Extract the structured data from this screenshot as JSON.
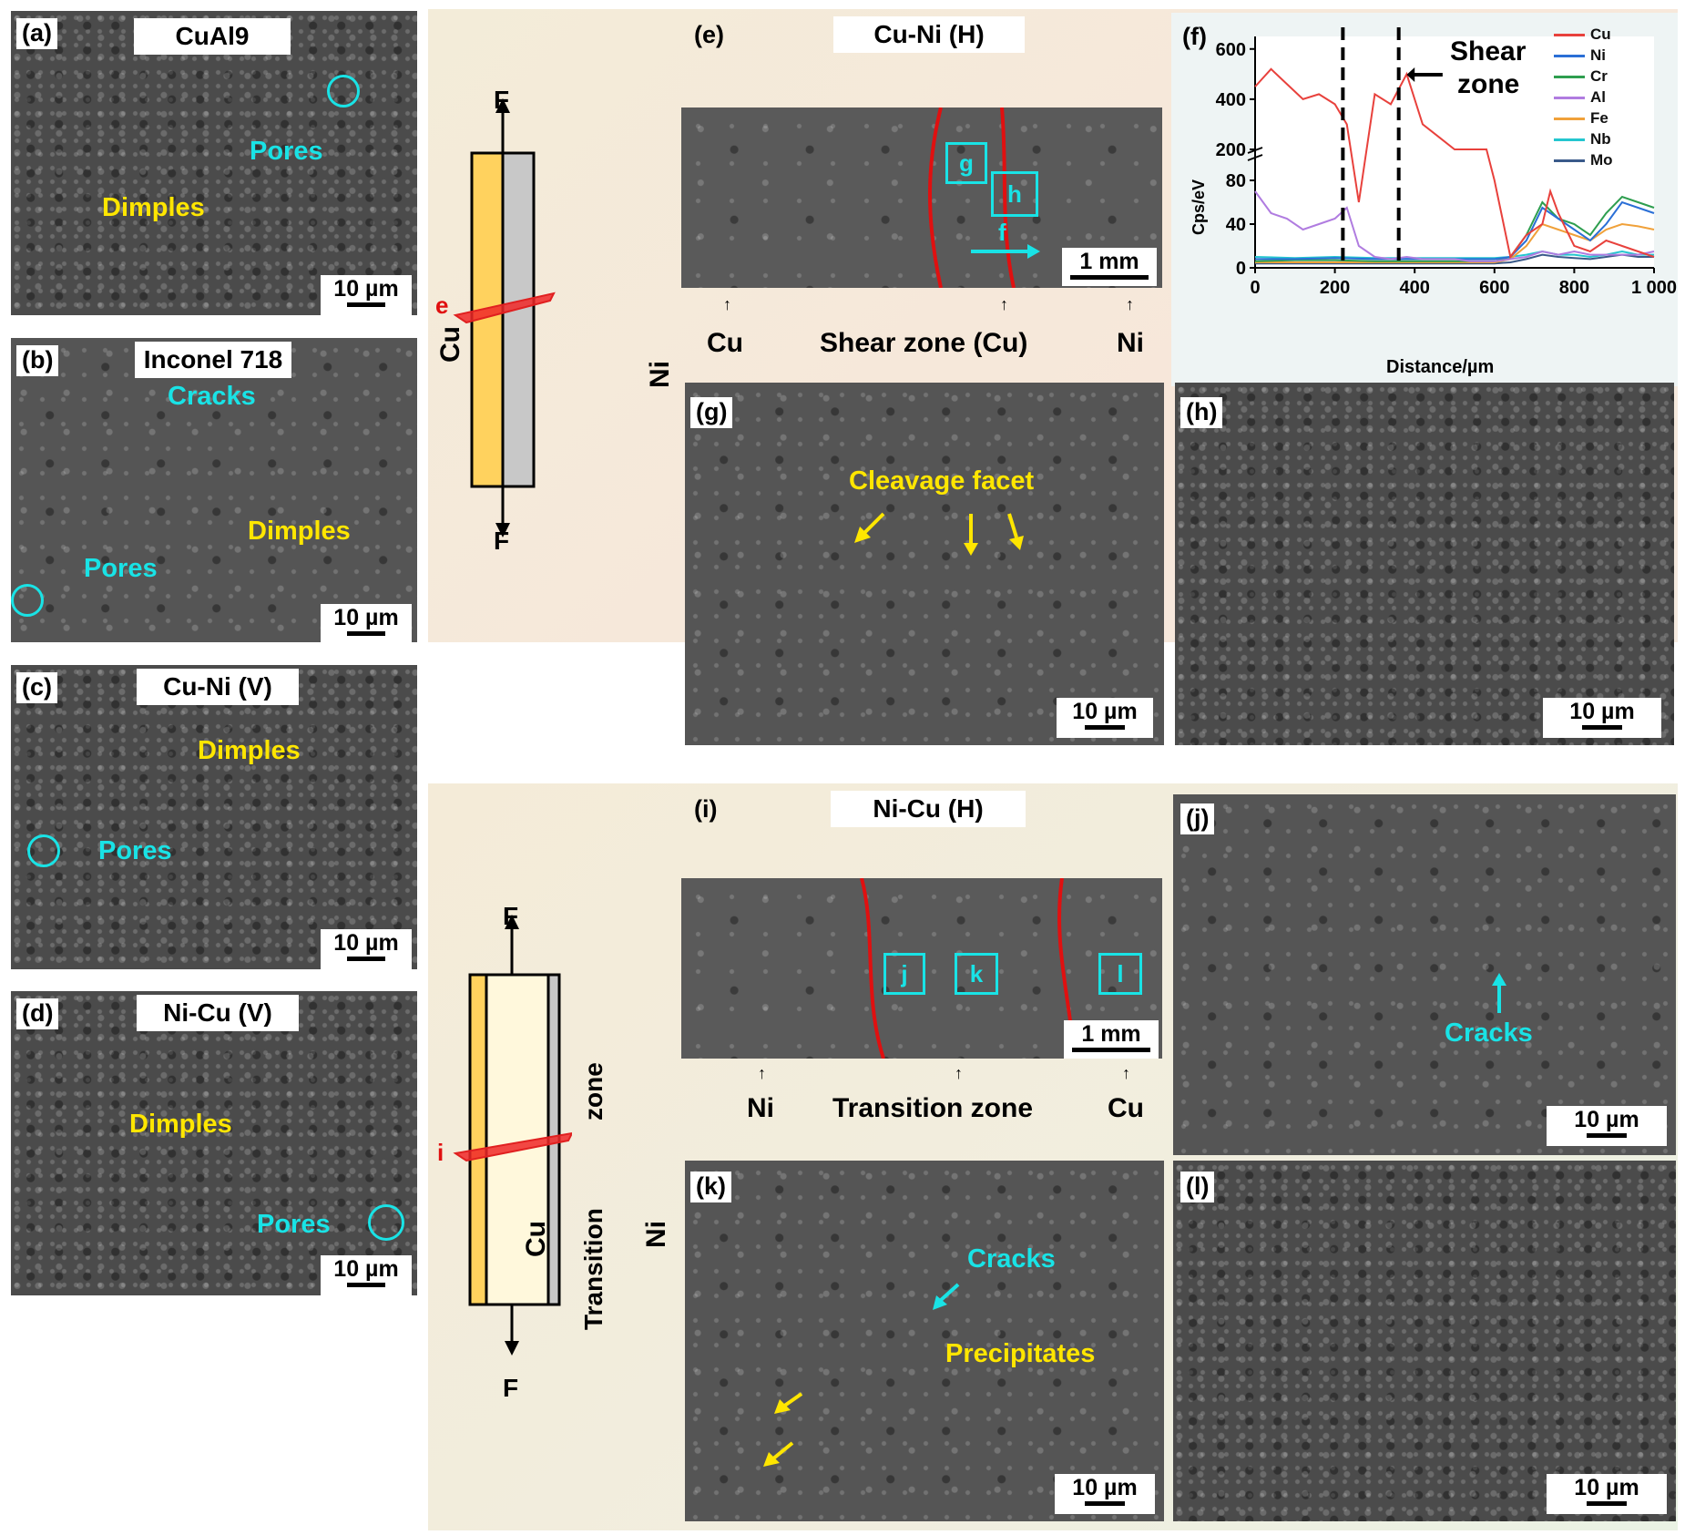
{
  "figure": {
    "panel_a": {
      "letter": "(a)",
      "title": "CuAl9",
      "labels": {
        "pores": "Pores",
        "dimples": "Dimples"
      },
      "scale": "10 µm"
    },
    "panel_b": {
      "letter": "(b)",
      "title": "Inconel 718",
      "labels": {
        "cracks": "Cracks",
        "dimples": "Dimples",
        "pores": "Pores"
      },
      "scale": "10 µm"
    },
    "panel_c": {
      "letter": "(c)",
      "title": "Cu-Ni (V)",
      "labels": {
        "dimples": "Dimples",
        "pores": "Pores"
      },
      "scale": "10 µm"
    },
    "panel_d": {
      "letter": "(d)",
      "title": "Ni-Cu (V)",
      "labels": {
        "dimples": "Dimples",
        "pores": "Pores"
      },
      "scale": "10 µm"
    },
    "schematic_top": {
      "force": "F",
      "section": "e",
      "left": "Cu",
      "right": "Ni"
    },
    "schematic_bottom": {
      "force": "F",
      "section": "i",
      "left": "Cu",
      "right": "Ni",
      "middle_a": "Transition",
      "middle_b": "zone"
    },
    "panel_e": {
      "letter": "(e)",
      "title": "Cu-Ni (H)",
      "boxes": [
        "g",
        "h"
      ],
      "arrow_label": "f",
      "scale": "1 mm",
      "below": [
        "Cu",
        "Shear zone (Cu)",
        "Ni"
      ]
    },
    "panel_g": {
      "letter": "(g)",
      "labels": {
        "cleavage": "Cleavage facet"
      },
      "scale": "10 µm"
    },
    "panel_h": {
      "letter": "(h)",
      "scale": "10 µm"
    },
    "panel_i": {
      "letter": "(i)",
      "title": "Ni-Cu (H)",
      "boxes": [
        "j",
        "k",
        "l"
      ],
      "scale": "1 mm",
      "below": [
        "Ni",
        "Transition zone",
        "Cu"
      ]
    },
    "panel_j": {
      "letter": "(j)",
      "labels": {
        "cracks": "Cracks"
      },
      "scale": "10 µm"
    },
    "panel_k": {
      "letter": "(k)",
      "labels": {
        "cracks": "Cracks",
        "precipitates": "Precipitates"
      },
      "scale": "10 µm"
    },
    "panel_l": {
      "letter": "(l)",
      "scale": "10 µm"
    }
  },
  "chart_data": {
    "type": "line",
    "letter": "(f)",
    "annotation": "Shear zone",
    "annotation_lines": [
      "Shear",
      "zone"
    ],
    "xlabel": "Distance/µm",
    "ylabel": "Cps/eV",
    "xlim": [
      0,
      1000
    ],
    "x_ticks": [
      "0",
      "200",
      "400",
      "600",
      "800",
      "1 000"
    ],
    "y_ticks_lower": [
      "0",
      "40",
      "80"
    ],
    "y_ticks_upper": [
      "200",
      "400",
      "600"
    ],
    "broken_axis": {
      "lower": [
        0,
        95
      ],
      "upper": [
        200,
        650
      ]
    },
    "shear_zone_lines_x": [
      220,
      360
    ],
    "legend": [
      {
        "name": "Cu",
        "color": "#e8413c"
      },
      {
        "name": "Ni",
        "color": "#2a6fd6"
      },
      {
        "name": "Cr",
        "color": "#2e9e4f"
      },
      {
        "name": "Al",
        "color": "#b07ce0"
      },
      {
        "name": "Fe",
        "color": "#f0a13a"
      },
      {
        "name": "Nb",
        "color": "#24c6cf"
      },
      {
        "name": "Mo",
        "color": "#3a5a8a"
      }
    ],
    "series": [
      {
        "name": "Cu",
        "x": [
          0,
          40,
          80,
          120,
          160,
          200,
          230,
          260,
          300,
          340,
          380,
          420,
          460,
          500,
          540,
          580,
          600,
          640,
          680,
          720,
          740,
          760,
          800,
          840,
          880,
          920,
          960,
          1000
        ],
        "y": [
          450,
          520,
          460,
          400,
          420,
          380,
          300,
          60,
          420,
          380,
          500,
          300,
          250,
          200,
          180,
          150,
          80,
          10,
          30,
          40,
          70,
          50,
          20,
          15,
          25,
          20,
          15,
          10
        ]
      },
      {
        "name": "Al",
        "x": [
          0,
          40,
          80,
          120,
          160,
          200,
          230,
          260,
          300,
          340,
          380,
          420,
          460,
          500,
          540,
          580,
          600,
          640,
          680,
          720,
          760,
          800,
          840,
          880,
          920,
          960,
          1000
        ],
        "y": [
          70,
          50,
          45,
          35,
          40,
          45,
          55,
          20,
          10,
          8,
          10,
          8,
          8,
          8,
          6,
          6,
          6,
          8,
          10,
          15,
          12,
          15,
          12,
          12,
          12,
          12,
          15
        ]
      },
      {
        "name": "Ni",
        "x": [
          0,
          100,
          200,
          300,
          400,
          500,
          600,
          640,
          680,
          720,
          760,
          800,
          840,
          880,
          920,
          960,
          1000
        ],
        "y": [
          8,
          8,
          9,
          8,
          8,
          8,
          8,
          10,
          25,
          55,
          45,
          35,
          25,
          40,
          60,
          55,
          50
        ]
      },
      {
        "name": "Cr",
        "x": [
          0,
          100,
          200,
          300,
          400,
          500,
          600,
          640,
          680,
          720,
          760,
          800,
          840,
          880,
          920,
          960,
          1000
        ],
        "y": [
          6,
          7,
          7,
          6,
          6,
          6,
          6,
          10,
          30,
          60,
          45,
          40,
          30,
          50,
          65,
          60,
          55
        ]
      },
      {
        "name": "Fe",
        "x": [
          0,
          100,
          200,
          300,
          400,
          500,
          600,
          640,
          680,
          720,
          760,
          800,
          840,
          880,
          920,
          960,
          1000
        ],
        "y": [
          5,
          5,
          5,
          5,
          5,
          5,
          5,
          8,
          20,
          40,
          35,
          30,
          25,
          35,
          40,
          38,
          35
        ]
      },
      {
        "name": "Nb",
        "x": [
          0,
          100,
          200,
          300,
          400,
          500,
          600,
          640,
          680,
          720,
          760,
          800,
          840,
          880,
          920,
          960,
          1000
        ],
        "y": [
          10,
          9,
          10,
          9,
          9,
          9,
          9,
          10,
          12,
          15,
          12,
          12,
          10,
          12,
          15,
          12,
          12
        ]
      },
      {
        "name": "Mo",
        "x": [
          0,
          100,
          200,
          300,
          400,
          500,
          600,
          640,
          680,
          720,
          760,
          800,
          840,
          880,
          920,
          960,
          1000
        ],
        "y": [
          4,
          4,
          4,
          4,
          4,
          4,
          4,
          5,
          8,
          12,
          10,
          9,
          8,
          10,
          12,
          10,
          10
        ]
      }
    ]
  }
}
